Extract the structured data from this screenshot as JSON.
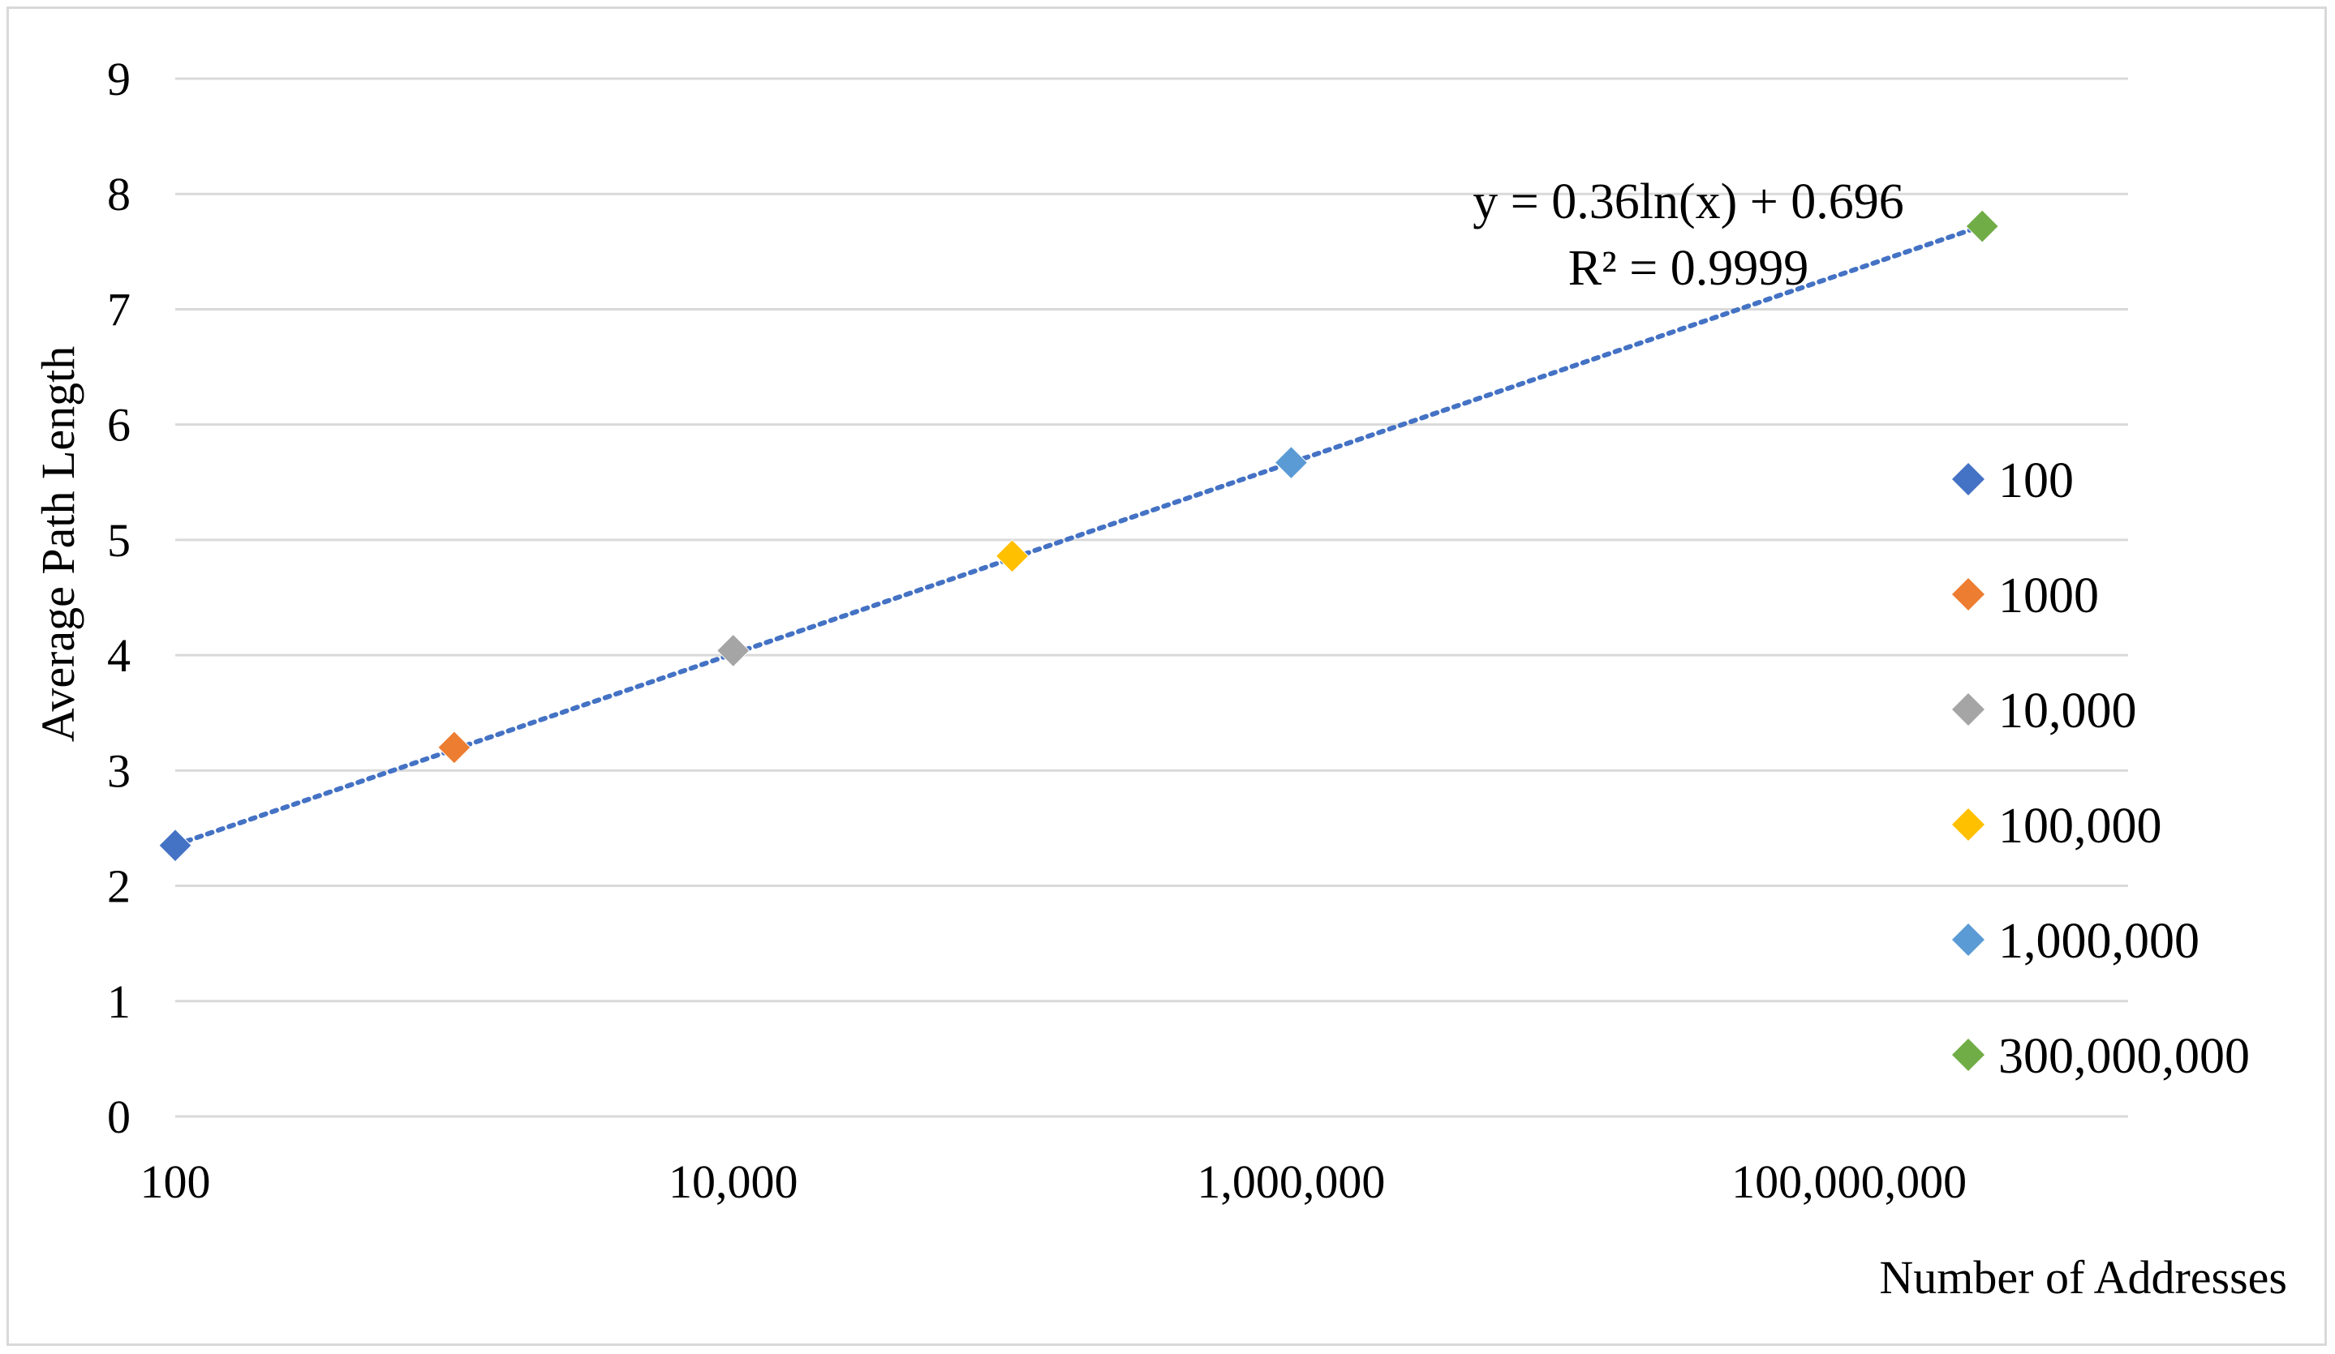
{
  "chart_data": {
    "type": "scatter",
    "x_scale": "log",
    "xlabel": "Number of Addresses",
    "ylabel": "Average Path Length",
    "xlim": [
      100,
      1000000000
    ],
    "ylim": [
      0,
      9
    ],
    "x_ticks": [
      {
        "value": 100,
        "label": "100"
      },
      {
        "value": 10000,
        "label": "10,000"
      },
      {
        "value": 1000000,
        "label": "1,000,000"
      },
      {
        "value": 100000000,
        "label": "100,000,000"
      }
    ],
    "y_ticks": [
      {
        "value": 0,
        "label": "0"
      },
      {
        "value": 1,
        "label": "1"
      },
      {
        "value": 2,
        "label": "2"
      },
      {
        "value": 3,
        "label": "3"
      },
      {
        "value": 4,
        "label": "4"
      },
      {
        "value": 5,
        "label": "5"
      },
      {
        "value": 6,
        "label": "6"
      },
      {
        "value": 7,
        "label": "7"
      },
      {
        "value": 8,
        "label": "8"
      },
      {
        "value": 9,
        "label": "9"
      }
    ],
    "grid": {
      "horizontal": true,
      "vertical": false,
      "color": "#d9d9d9"
    },
    "legend_position": "right",
    "series": [
      {
        "name": "100",
        "x": 100,
        "y": 2.35,
        "color": "#4472c4"
      },
      {
        "name": "1000",
        "x": 1000,
        "y": 3.2,
        "color": "#ed7d31"
      },
      {
        "name": "10,000",
        "x": 10000,
        "y": 4.04,
        "color": "#a5a5a5"
      },
      {
        "name": "100,000",
        "x": 100000,
        "y": 4.86,
        "color": "#ffc000"
      },
      {
        "name": "1,000,000",
        "x": 1000000,
        "y": 5.67,
        "color": "#5b9bd5"
      },
      {
        "name": "300,000,000",
        "x": 300000000,
        "y": 7.72,
        "color": "#70ad47"
      }
    ],
    "trendline": {
      "type": "logarithmic",
      "a": 0.36,
      "b": 0.696,
      "equation": "y = 0.36ln(x) + 0.696",
      "r_squared": "R² = 0.9999",
      "color": "#4472c4",
      "style": "dotted"
    }
  }
}
